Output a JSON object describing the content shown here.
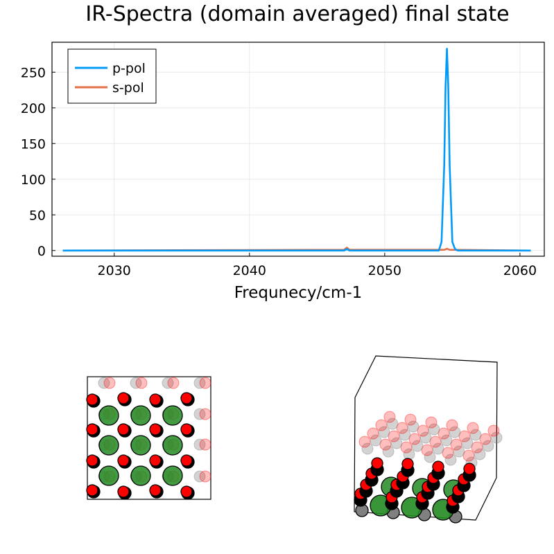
{
  "colors": {
    "p_pol": "#009af9",
    "s_pol": "#e26f46",
    "grid": "#e9e9e9",
    "substrate_atom": "#808080",
    "adsorbate_atom": "#ff0000",
    "carbon_atom": "#000000",
    "metal_atom": "#228b22"
  },
  "chart_data": [
    {
      "type": "line",
      "title": "IR-Spectra (domain averaged) final state",
      "xlabel": "Frequnecy/cm-1",
      "ylabel": "",
      "xlim": [
        2025.4,
        2061.8
      ],
      "ylim": [
        -8,
        292
      ],
      "xticks": [
        2030,
        2040,
        2050,
        2060
      ],
      "yticks": [
        0,
        50,
        100,
        150,
        200,
        250
      ],
      "grid": true,
      "legend": "top-left",
      "series": [
        {
          "name": "p-pol",
          "x": [
            2026.2,
            2047.0,
            2047.2,
            2047.4,
            2054.0,
            2054.2,
            2054.4,
            2054.5,
            2054.6,
            2054.7,
            2054.8,
            2055.0,
            2055.2,
            2055.4,
            2060.8
          ],
          "y": [
            0,
            0,
            2,
            0,
            0,
            12,
            120,
            230,
            283,
            230,
            120,
            12,
            2,
            0,
            0
          ]
        },
        {
          "name": "s-pol",
          "x": [
            2026.2,
            2047.0,
            2047.2,
            2047.4,
            2054.4,
            2054.6,
            2054.8,
            2060.8
          ],
          "y": [
            0,
            1,
            4,
            1,
            1,
            2.5,
            1,
            0
          ]
        }
      ]
    },
    {
      "type": "scatter",
      "title": "",
      "series": [
        {
          "name": "",
          "x": [],
          "y": []
        }
      ]
    }
  ]
}
